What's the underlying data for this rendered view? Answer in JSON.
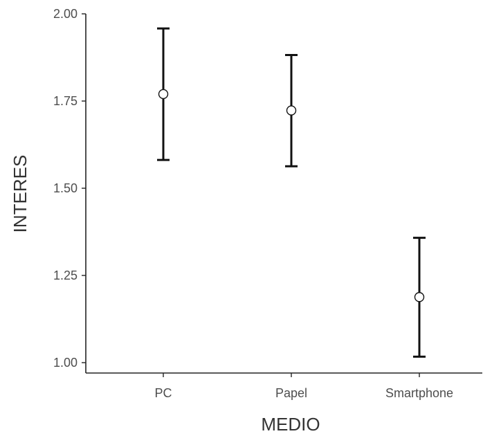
{
  "chart_data": {
    "type": "scatter",
    "title": "",
    "xlabel": "MEDIO",
    "ylabel": "INTERES",
    "categories": [
      "PC",
      "Papel",
      "Smartphone"
    ],
    "values": [
      1.77,
      1.723,
      1.188
    ],
    "error_bars": {
      "lower": [
        1.581,
        1.563,
        1.017
      ],
      "upper": [
        1.958,
        1.882,
        1.358
      ]
    },
    "yticks": [
      "1.00",
      "1.25",
      "1.50",
      "1.75",
      "2.00"
    ],
    "ylim": [
      0.97,
      2.0
    ],
    "grid": false,
    "legend": "none"
  }
}
